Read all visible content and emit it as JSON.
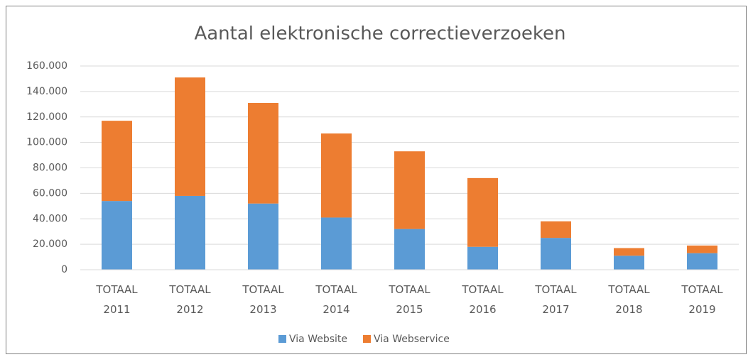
{
  "chart_data": {
    "type": "stacked_bar",
    "title": "Aantal elektronische correctieverzoeken",
    "categories": [
      "TOTAAL 2011",
      "TOTAAL 2012",
      "TOTAAL 2013",
      "TOTAAL 2014",
      "TOTAAL 2015",
      "TOTAAL 2016",
      "TOTAAL 2017",
      "TOTAAL 2018",
      "TOTAAL 2019"
    ],
    "series": [
      {
        "name": "Via Website",
        "color": "#5b9bd5",
        "values": [
          54000,
          58000,
          52000,
          41000,
          32000,
          18000,
          25000,
          11000,
          13000
        ]
      },
      {
        "name": "Via Webservice",
        "color": "#ed7d31",
        "values": [
          63000,
          93000,
          79000,
          66000,
          61000,
          54000,
          13000,
          6000,
          6000
        ]
      }
    ],
    "ylim": [
      0,
      160000
    ],
    "yticks": [
      0,
      {
        "value": 20000,
        "label": "20.000"
      },
      {
        "value": 40000,
        "label": "40.000"
      },
      {
        "value": 60000,
        "label": "60.000"
      },
      {
        "value": 80000,
        "label": "80.000"
      },
      {
        "value": 100000,
        "label": "100.000"
      },
      {
        "value": 120000,
        "label": "120.000"
      },
      {
        "value": 140000,
        "label": "140.000"
      },
      {
        "value": 160000,
        "label": "160.000"
      }
    ],
    "grid": true,
    "legend": "bottom"
  }
}
